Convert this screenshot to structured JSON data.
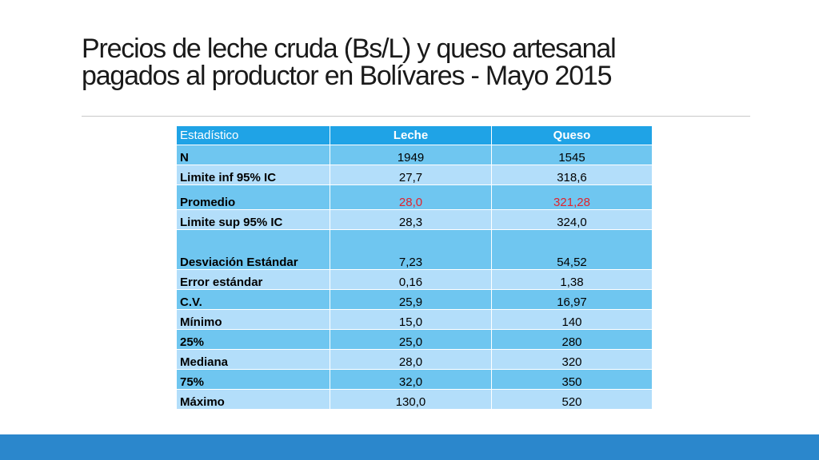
{
  "slide": {
    "title_line1": "Precios de leche cruda (Bs/L) y queso artesanal",
    "title_line2": "pagados al productor en Bolívares - Mayo 2015"
  },
  "table": {
    "headers": [
      "Estadístico",
      "Leche",
      "Queso"
    ],
    "rows": [
      {
        "label": "N",
        "leche": "1949",
        "queso": "1545"
      },
      {
        "label": "Limite inf  95% IC",
        "leche": "27,7",
        "queso": "318,6"
      },
      {
        "label": "Promedio",
        "leche": "28,0",
        "queso": "321,28"
      },
      {
        "label": "Limite sup 95% IC",
        "leche": "28,3",
        "queso": "324,0"
      },
      {
        "label": "Desviación Estándar",
        "leche": "7,23",
        "queso": "54,52"
      },
      {
        "label": "Error estándar",
        "leche": "0,16",
        "queso": "1,38"
      },
      {
        "label": "C.V.",
        "leche": "25,9",
        "queso": "16,97"
      },
      {
        "label": "Mínimo",
        "leche": "15,0",
        "queso": "140"
      },
      {
        "label": "25%",
        "leche": "25,0",
        "queso": "280"
      },
      {
        "label": "Mediana",
        "leche": "28,0",
        "queso": "320"
      },
      {
        "label": "75%",
        "leche": "32,0",
        "queso": "350"
      },
      {
        "label": "Máximo",
        "leche": "130,0",
        "queso": "520"
      }
    ]
  },
  "colors": {
    "header": "#1fa3e6",
    "row_dark": "#6fc6f0",
    "row_light": "#b3defa",
    "highlight_text": "#e0242d",
    "footer_bar": "#2b87cc"
  }
}
